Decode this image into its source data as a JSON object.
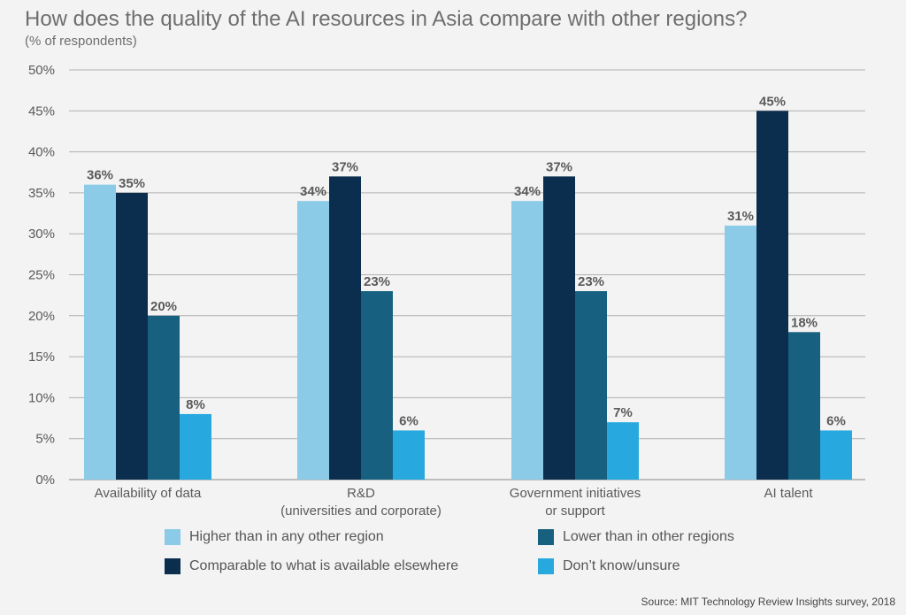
{
  "title": "How does the quality of the AI resources in Asia compare with other regions?",
  "subtitle": "(% of respondents)",
  "source": "Source: MIT Technology Review Insights survey, 2018",
  "colors": {
    "higher": "#8ccbe8",
    "comparable": "#0b2d4e",
    "lower": "#17607f",
    "unsure": "#27a8df",
    "grid": "#b0b0b0",
    "label": "#5a5a5a"
  },
  "chart_data": {
    "type": "bar",
    "title": "How does the quality of the AI resources in Asia compare with other regions?",
    "subtitle": "(% of respondents)",
    "categories": [
      [
        "Availability of data"
      ],
      [
        "R&D",
        "(universities and corporate)"
      ],
      [
        "Government initiatives",
        "or support"
      ],
      [
        "AI talent"
      ]
    ],
    "ylim": [
      0,
      50
    ],
    "yticks": [
      0,
      5,
      10,
      15,
      20,
      25,
      30,
      35,
      40,
      45,
      50
    ],
    "ytick_labels": [
      "0%",
      "5%",
      "10%",
      "15%",
      "20%",
      "25%",
      "30%",
      "35%",
      "40%",
      "45%",
      "50%"
    ],
    "grid": true,
    "legend_position": "bottom",
    "series": [
      {
        "name": "Higher than in any other region",
        "color_key": "higher",
        "values": [
          36,
          34,
          34,
          31
        ],
        "value_labels": [
          "36%",
          "34%",
          "34%",
          "31%"
        ]
      },
      {
        "name": "Comparable to what is available elsewhere",
        "color_key": "comparable",
        "values": [
          35,
          37,
          37,
          45
        ],
        "value_labels": [
          "35%",
          "37%",
          "37%",
          "45%"
        ]
      },
      {
        "name": "Lower than in other regions",
        "color_key": "lower",
        "values": [
          20,
          23,
          23,
          18
        ],
        "value_labels": [
          "20%",
          "23%",
          "23%",
          "18%"
        ]
      },
      {
        "name": "Don’t know/unsure",
        "color_key": "unsure",
        "values": [
          8,
          6,
          7,
          6
        ],
        "value_labels": [
          "8%",
          "6%",
          "7%",
          "6%"
        ]
      }
    ]
  }
}
